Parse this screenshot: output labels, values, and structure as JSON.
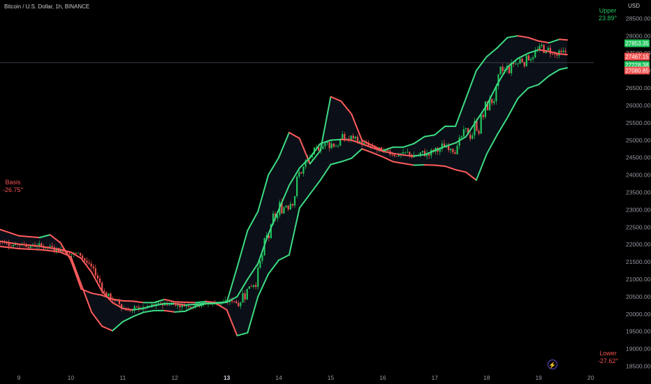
{
  "header": {
    "symbol_title": "Bitcoin / U.S. Dollar, 1h, BINANCE"
  },
  "currency": "USD",
  "labels": {
    "upper_name": "Upper",
    "upper_value": "23.89°",
    "basis_name": "Basis",
    "basis_value": "-26.75°",
    "lower_name": "Lower",
    "lower_value": "-27.62°"
  },
  "price_tags": [
    {
      "value": "27853.35",
      "color": "#22c55e"
    },
    {
      "value": "27467.15",
      "color": "#ef5350"
    },
    {
      "value": "27228.38",
      "color": "#22c55e"
    },
    {
      "value": "27080.85",
      "color": "#ef5350"
    }
  ],
  "icons": {
    "live": "lightning-icon"
  },
  "chart_data": {
    "type": "candlestick",
    "title": "Bitcoin / U.S. Dollar, 1h, BINANCE",
    "ylabel": "USD",
    "ylim": [
      18350,
      28950
    ],
    "y_ticks": [
      18500,
      19000,
      19500,
      20000,
      20500,
      21000,
      21500,
      22000,
      22500,
      23000,
      23500,
      24000,
      24500,
      25000,
      25500,
      26000,
      26500,
      27000,
      27500,
      28000,
      28500
    ],
    "x_ticks": [
      "9",
      "10",
      "11",
      "12",
      "13",
      "14",
      "15",
      "16",
      "17",
      "18",
      "19",
      "20"
    ],
    "bold_x_ticks": [
      "13"
    ],
    "series": [
      {
        "name": "Upper",
        "x": [
          8.6,
          9.0,
          9.4,
          9.6,
          9.8,
          10.0,
          10.2,
          10.4,
          10.6,
          10.8,
          11.0,
          11.2,
          11.4,
          11.6,
          11.8,
          12.0,
          12.2,
          12.4,
          12.6,
          12.8,
          13.0,
          13.2,
          13.4,
          13.6,
          13.8,
          14.0,
          14.2,
          14.4,
          14.6,
          14.8,
          15.0,
          15.2,
          15.4,
          15.6,
          15.8,
          16.0,
          16.2,
          16.4,
          16.6,
          16.8,
          17.0,
          17.2,
          17.4,
          17.6,
          17.8,
          18.0,
          18.2,
          18.4,
          18.6,
          18.8,
          19.0,
          19.2,
          19.4,
          19.55
        ],
        "values": [
          22450,
          22250,
          22200,
          22280,
          22050,
          21550,
          20720,
          20600,
          20540,
          20430,
          20380,
          20370,
          20330,
          20330,
          20420,
          20350,
          20340,
          20330,
          20360,
          20330,
          20340,
          21350,
          22400,
          22950,
          24000,
          24500,
          25220,
          25050,
          24320,
          24700,
          26250,
          26120,
          25750,
          25000,
          24850,
          24700,
          24800,
          24800,
          24900,
          25100,
          25150,
          25400,
          25400,
          26200,
          27000,
          27400,
          27650,
          27950,
          28000,
          27950,
          27850,
          27800,
          27900,
          27880
        ]
      },
      {
        "name": "Basis",
        "x": [
          8.6,
          9.0,
          9.4,
          9.6,
          9.8,
          10.0,
          10.2,
          10.4,
          10.6,
          10.8,
          11.0,
          11.2,
          11.4,
          11.6,
          11.8,
          12.0,
          12.2,
          12.4,
          12.6,
          12.8,
          13.0,
          13.2,
          13.4,
          13.6,
          13.8,
          14.0,
          14.2,
          14.4,
          14.6,
          14.8,
          15.0,
          15.2,
          15.4,
          15.6,
          15.8,
          16.0,
          16.2,
          16.4,
          16.6,
          16.8,
          17.0,
          17.2,
          17.4,
          17.6,
          17.8,
          18.0,
          18.2,
          18.4,
          18.6,
          18.8,
          19.0,
          19.2,
          19.4,
          19.55
        ],
        "values": [
          22100,
          22010,
          21950,
          21900,
          21850,
          21780,
          21600,
          21200,
          20650,
          20330,
          20160,
          20120,
          20170,
          20240,
          20300,
          20300,
          20260,
          20280,
          20310,
          20310,
          20340,
          20500,
          21000,
          21450,
          22300,
          23000,
          23700,
          24200,
          24500,
          24900,
          25000,
          25020,
          25000,
          24890,
          24780,
          24680,
          24620,
          24570,
          24540,
          24580,
          24700,
          24820,
          24920,
          25100,
          25550,
          26000,
          26600,
          27100,
          27350,
          27500,
          27600,
          27550,
          27480,
          27460
        ]
      },
      {
        "name": "Lower",
        "x": [
          8.6,
          9.0,
          9.4,
          9.6,
          9.8,
          10.0,
          10.2,
          10.4,
          10.6,
          10.8,
          11.0,
          11.2,
          11.4,
          11.6,
          11.8,
          12.0,
          12.2,
          12.4,
          12.6,
          12.8,
          13.0,
          13.2,
          13.4,
          13.6,
          13.8,
          14.0,
          14.2,
          14.4,
          14.6,
          14.8,
          15.0,
          15.2,
          15.4,
          15.6,
          15.8,
          16.0,
          16.2,
          16.4,
          16.6,
          16.8,
          17.0,
          17.2,
          17.4,
          17.6,
          17.8,
          18.0,
          18.2,
          18.4,
          18.6,
          18.8,
          19.0,
          19.2,
          19.4,
          19.55
        ],
        "values": [
          21950,
          21880,
          21850,
          21820,
          21780,
          21650,
          20850,
          20050,
          19650,
          19520,
          19780,
          19930,
          20050,
          20100,
          20100,
          20060,
          20080,
          20220,
          20300,
          20300,
          20120,
          19380,
          19460,
          20500,
          21150,
          21550,
          21700,
          23050,
          23450,
          23850,
          24300,
          24380,
          24480,
          24750,
          24640,
          24520,
          24380,
          24330,
          24280,
          24290,
          24280,
          24250,
          24150,
          24080,
          23850,
          24600,
          25150,
          25650,
          26200,
          26500,
          26600,
          26850,
          27030,
          27080
        ]
      }
    ],
    "candles_note": "1h OHLC candlesticks following the basis path",
    "last_price": 27228.38
  }
}
